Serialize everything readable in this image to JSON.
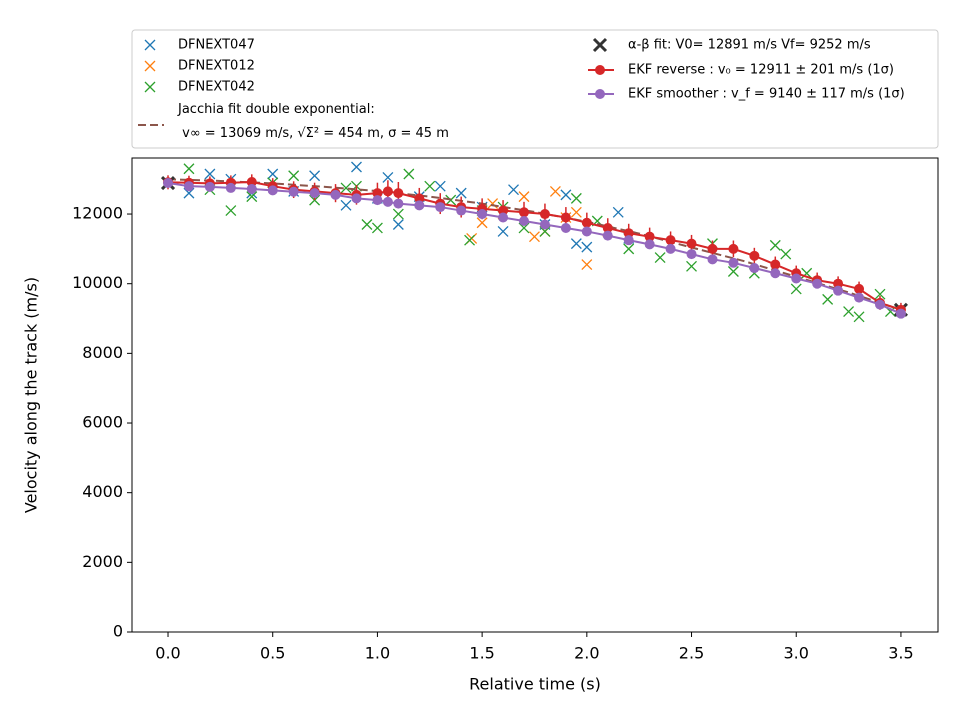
{
  "chart_data": {
    "type": "scatter",
    "xlabel": "Relative time (s)",
    "ylabel": "Velocity along the track (m/s)",
    "xlim": [
      -0.172,
      3.677
    ],
    "ylim": [
      0,
      13609
    ],
    "xticks": [
      {
        "value": 0,
        "label": "0.0"
      },
      0.5,
      {
        "value": 1,
        "label": "1.0"
      },
      1.5,
      {
        "value": 2,
        "label": "2.0"
      },
      2.5,
      {
        "value": 3,
        "label": "3.0"
      },
      3.5
    ],
    "yticks": [
      0,
      2000,
      4000,
      6000,
      8000,
      10000,
      12000
    ],
    "legend": "top-outside",
    "series": [
      {
        "name": "DFNEXT047",
        "color": "#1f77b4",
        "marker": "x",
        "line": "none",
        "x": [
          0.1,
          0.2,
          0.3,
          0.4,
          0.5,
          0.6,
          0.7,
          0.85,
          0.9,
          1.0,
          1.05,
          1.1,
          1.2,
          1.3,
          1.4,
          1.5,
          1.6,
          1.65,
          1.8,
          1.9,
          1.95,
          2.0,
          2.15,
          2.2
        ],
        "values": [
          12600,
          13150,
          13000,
          12600,
          13150,
          12650,
          13100,
          12250,
          13350,
          12450,
          13050,
          11700,
          12500,
          12800,
          12600,
          12200,
          11500,
          12700,
          11700,
          12550,
          11150,
          11050,
          12050,
          11300
        ]
      },
      {
        "name": "DFNEXT012",
        "color": "#ff7f0e",
        "marker": "x",
        "line": "none",
        "x": [
          1.45,
          1.5,
          1.55,
          1.6,
          1.7,
          1.75,
          1.8,
          1.85,
          1.9,
          1.95,
          2.0,
          2.1
        ],
        "values": [
          11300,
          11750,
          12300,
          12000,
          12500,
          11350,
          11500,
          12650,
          11900,
          12050,
          10550,
          11500
        ]
      },
      {
        "name": "DFNEXT042",
        "color": "#2ca02c",
        "marker": "x",
        "line": "none",
        "x": [
          0.1,
          0.2,
          0.3,
          0.4,
          0.5,
          0.6,
          0.7,
          0.85,
          0.9,
          0.95,
          1.0,
          1.1,
          1.15,
          1.25,
          1.35,
          1.44,
          1.5,
          1.6,
          1.7,
          1.8,
          1.95,
          2.05,
          2.2,
          2.35,
          2.5,
          2.6,
          2.7,
          2.8,
          2.9,
          2.95,
          3.0,
          3.05,
          3.15,
          3.25,
          3.3,
          3.4,
          3.45
        ],
        "values": [
          13300,
          12700,
          12100,
          12500,
          12900,
          13100,
          12400,
          12750,
          12800,
          11700,
          11600,
          12000,
          13150,
          12800,
          12400,
          11250,
          12100,
          12200,
          11600,
          11500,
          12450,
          11800,
          11000,
          10750,
          10500,
          11150,
          10350,
          10300,
          11100,
          10850,
          9850,
          10300,
          9550,
          9200,
          9050,
          9700,
          9200
        ]
      },
      {
        "name": "Jacchia fit double exponential:\n    v∞ = 13069 m/s, √Σ² = 454 m, σ = 45 m",
        "color": "#8c564b",
        "marker": "none",
        "line": "dashed",
        "x": [
          0,
          0.25,
          0.5,
          0.75,
          1,
          1.25,
          1.5,
          1.75,
          2,
          2.25,
          2.5,
          2.75,
          3,
          3.25,
          3.5
        ],
        "values": [
          13000,
          12950,
          12880,
          12780,
          12660,
          12500,
          12300,
          12060,
          11780,
          11440,
          11040,
          10650,
          10200,
          9750,
          9250
        ]
      },
      {
        "name": "α-β fit: V0= 12891 m/s   Vf= 9252 m/s",
        "color": "#333333",
        "marker": "X",
        "line": "none",
        "x": [
          0,
          3.5
        ],
        "values": [
          12891,
          9252
        ]
      },
      {
        "name": "EKF reverse : v₀ =  12911 ± 201 m/s (1σ)",
        "color": "#d62728",
        "marker": "o",
        "line": "solid",
        "x": [
          0,
          0.1,
          0.2,
          0.3,
          0.4,
          0.5,
          0.6,
          0.7,
          0.8,
          0.9,
          1.0,
          1.05,
          1.1,
          1.2,
          1.3,
          1.4,
          1.5,
          1.6,
          1.7,
          1.8,
          1.9,
          2.0,
          2.1,
          2.2,
          2.3,
          2.4,
          2.5,
          2.6,
          2.7,
          2.8,
          2.9,
          3.0,
          3.1,
          3.2,
          3.3,
          3.4,
          3.5
        ],
        "values": [
          12911,
          12900,
          12880,
          12900,
          12920,
          12800,
          12700,
          12650,
          12600,
          12550,
          12600,
          12650,
          12600,
          12450,
          12300,
          12200,
          12150,
          12100,
          12050,
          12000,
          11900,
          11750,
          11600,
          11450,
          11350,
          11250,
          11150,
          11000,
          11000,
          10800,
          10550,
          10300,
          10100,
          10000,
          9850,
          9450,
          9250
        ],
        "errors": [
          201,
          200,
          200,
          210,
          220,
          230,
          240,
          250,
          260,
          280,
          300,
          320,
          320,
          300,
          300,
          300,
          300,
          300,
          300,
          300,
          300,
          290,
          280,
          270,
          260,
          250,
          250,
          240,
          240,
          230,
          230,
          220,
          220,
          210,
          210,
          200,
          200
        ]
      },
      {
        "name": "EKF smoother : v_f =  9140 ± 117 m/s (1σ)",
        "color": "#9467bd",
        "marker": "o",
        "line": "solid",
        "x": [
          0,
          0.1,
          0.2,
          0.3,
          0.4,
          0.5,
          0.6,
          0.7,
          0.8,
          0.9,
          1.0,
          1.05,
          1.1,
          1.2,
          1.3,
          1.4,
          1.5,
          1.6,
          1.7,
          1.8,
          1.9,
          2.0,
          2.1,
          2.2,
          2.3,
          2.4,
          2.5,
          2.6,
          2.7,
          2.8,
          2.9,
          3.0,
          3.1,
          3.2,
          3.3,
          3.4,
          3.5
        ],
        "values": [
          12891,
          12800,
          12780,
          12750,
          12720,
          12680,
          12640,
          12600,
          12550,
          12450,
          12400,
          12350,
          12300,
          12250,
          12200,
          12100,
          12000,
          11900,
          11800,
          11700,
          11600,
          11500,
          11380,
          11250,
          11130,
          11000,
          10850,
          10700,
          10600,
          10450,
          10300,
          10150,
          10000,
          9800,
          9600,
          9400,
          9140
        ],
        "errors": [
          120,
          120,
          120,
          120,
          120,
          120,
          120,
          120,
          120,
          120,
          120,
          120,
          120,
          120,
          120,
          120,
          120,
          120,
          120,
          120,
          120,
          120,
          120,
          120,
          120,
          120,
          120,
          120,
          120,
          120,
          120,
          120,
          120,
          120,
          120,
          120,
          117
        ]
      }
    ]
  }
}
